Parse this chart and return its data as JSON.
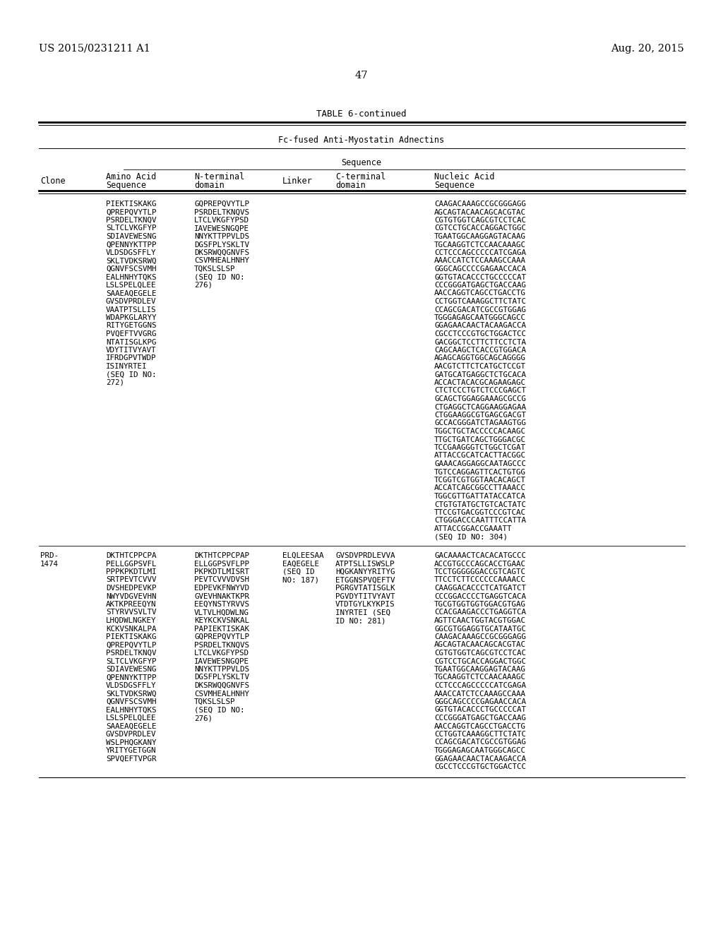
{
  "background_color": "#ffffff",
  "page_number": "47",
  "left_header": "US 2015/0231211 A1",
  "right_header": "Aug. 20, 2015",
  "table_title": "TABLE 6-continued",
  "table_subtitle": "Fc-fused Anti-Myostatin Adnectins",
  "row1": {
    "clone": "",
    "amino_acid": [
      "PIEKTISKAKG",
      "QPREPQVYTLP",
      "PSRDELTKNQV",
      "SLTCLVKGFYP",
      "SDIAVEWESNG",
      "QPENNYKTTPP",
      "VLDSDGSFFLY",
      "SKLTVDKSRWQ",
      "QGNVFSCSVMH",
      "EALHNHYTQKS",
      "LSLSPELQLEE",
      "SAAEAQEGELE",
      "GVSDVPRDLEV",
      "VAATPTSLLIS",
      "WDAPKGLARYY",
      "RITYGETGGNS",
      "PVQEFTVVGRG",
      "NTATISGLKPG",
      "VDYTITVYAVT",
      "IFRDGPVTWDP",
      "ISINYRTEI",
      "(SEQ ID NO:",
      "272)"
    ],
    "n_terminal": [
      "GQPREPQVYTLP",
      "PSRDELTKNQVS",
      "LTCLVKGFYPSD",
      "IAVEWESNGQPE",
      "NNYKTTPPVLDS",
      "DGSFPLYSKLTV",
      "DKSRWQQGNVFS",
      "CSVMHEALHNHY",
      "TQKSLSLSP",
      "(SEQ ID NO:",
      "276)"
    ],
    "linker": [],
    "c_terminal": [],
    "nucleic_acid": [
      "CAAGACAAAGCCGCGGGAGG",
      "AGCAGTACAACAGCACGTAC",
      "CGTGTGGTCAGCGTCCTCAC",
      "CGTCCTGCACCAGGACTGGC",
      "TGAATGGCAAGGAGTACAAG",
      "TGCAAGGTCTCCAACAAAGC",
      "CCTCCCAGCCCCCATCGAGA",
      "AAACCATCTCCAAAGCCAAA",
      "GGGCAGCCCCGAGAACCACA",
      "GGTGTACACCCTGCCCCCAT",
      "CCCGGGATGAGCTGACCAAG",
      "AACCAGGTCAGCCTGACCTG",
      "CCTGGTCAAAGGCTTCTATC",
      "CCAGCGACATCGCCGTGGAG",
      "TGGGAGAGCAATGGGCAGCC",
      "GGAGAACAACTACAAGACCA",
      "CGCCTCCCGTGCTGGACTCC",
      "GACGGCTCCTTCTTCCTCTA",
      "CAGCAAGCTCACCGTGGACA",
      "AGAGCAGGTGGCAGCAGGGG",
      "AACGTCTTCTCATGCTCCGT",
      "GATGCATGAGGCTCTGCACA",
      "ACCACTACACGCAGAAGAGC",
      "CTCTCCCTGTCTCCCGAGCT",
      "GCAGCTGGAGGAAAGCGCCG",
      "CTGAGGCTCAGGAAGGAGAA",
      "CTGGAAGGCGTGAGCGACGT",
      "GCCACGGGATCTAGAAGTGG",
      "TGGCTGCTACCCCCACAAGC",
      "TTGCTGATCAGCTGGGACGC",
      "TCCGAAGGGTCTGGCTCGAT",
      "ATTACCGCATCACTTACGGC",
      "GAAACAGGAGGCAATAGCCC",
      "TGTCCAGGAGTTCACTGTGG",
      "TCGGTCGTGGTAACACAGCT",
      "ACCATCAGCGGCCTTAAACC",
      "TGGCGTTGATTATACCATCA",
      "CTGTGTATGCTGTCACTATC",
      "TTCCGTGACGGTCCCGTCAC",
      "CTGGGACCCAATTTCCATTA",
      "ATTACCGGACCGAAATT",
      "(SEQ ID NO: 304)"
    ]
  },
  "row2": {
    "clone_line1": "PRD-",
    "clone_line2": "1474",
    "amino_acid": [
      "DKTHTCPPCPA",
      "PELLGGPSVFL",
      "PPPKPKDTLMI",
      "SRTPEVTCVVV",
      "DVSHEDPEVKP",
      "NWYVDGVEVHN",
      "AKTKPREEQYN",
      "STYRVVSVLTV",
      "LHQDWLNGKEY",
      "KCKVSNKALPA",
      "PIEKTISKAKG",
      "QPREPQVYTLP",
      "PSRDELTKNQV",
      "SLTCLVKGFYP",
      "SDIAVEWESNG",
      "QPENNYKTTPP",
      "VLDSDGSFFLY",
      "SKLTVDKSRWQ",
      "QGNVFSCSVMH",
      "EALHNHYTQKS",
      "LSLSPELQLEE",
      "SAAEAQEGELE",
      "GVSDVPRDLEV",
      "WSLPHQGKANY",
      "YRITYGETGGN",
      "SPVQEFTVPGR"
    ],
    "n_terminal": [
      "DKTHTCPPCPAP",
      "ELLGGPSVFLPP",
      "PKPKDTLMISRT",
      "PEVTCVVVDVSH",
      "EDPEVKFNWYVD",
      "GVEVHNAKTKPR",
      "EEQYNSTYRVVS",
      "VLTVLHQDWLNG",
      "KEYKCKVSNKAL",
      "PAPIEKTISKAK",
      "GQPREPQVYTLP",
      "PSRDELTKNQVS",
      "LTCLVKGFYPSD",
      "IAVEWESNGQPE",
      "NNYKTTPPVLDS",
      "DGSFPLYSKLTV",
      "DKSRWQQGNVFS",
      "CSVMHEALHNHY",
      "TQKSLSLSP",
      "(SEQ ID NO:",
      "276)"
    ],
    "linker": [
      "ELQLEESAA",
      "EAQEGELE",
      "(SEQ ID",
      "NO: 187)"
    ],
    "c_terminal": [
      "GVSDVPRDLEVVA",
      "ATPTSLLISWSLP",
      "HQGKANYYRITYG",
      "ETGGNSPVQEFTV",
      "PGRGVTATISGLK",
      "PGVDYTITVYAVT",
      "VTDTGYLKYKPIS",
      "INYRTEI (SEQ",
      "ID NO: 281)"
    ],
    "nucleic_acid": [
      "GACAAAACTCACACATGCCC",
      "ACCGTGCCCAGCACCTGAAC",
      "TCCTGGGGGGACCGTCAGTC",
      "TTCCTCTTCCCCCCAAAACC",
      "CAAGGACACCCTCATGATCT",
      "CCCGGACCCCTGAGGTCACA",
      "TGCGTGGTGGTGGACGTGAG",
      "CCACGAAGACCCTGAGGTCA",
      "AGTTCAACTGGTACGTGGAC",
      "GGCGTGGAGGTGCATAATGC",
      "CAAGACAAAGCCGCGGGAGG",
      "AGCAGTACAACAGCACGTAC",
      "CGTGTGGTCAGCGTCCTCAC",
      "CGTCCTGCACCAGGACTGGC",
      "TGAATGGCAAGGAGTACAAG",
      "TGCAAGGTCTCCAACAAAGC",
      "CCTCCCAGCCCCCATCGAGA",
      "AAACCATCTCCAAAGCCAAA",
      "GGGCAGCCCCGAGAACCACA",
      "GGTGTACACCCTGCCCCCAT",
      "CCCGGGATGAGCTGACCAAG",
      "AACCAGGTCAGCCTGACCTG",
      "CCTGGTCAAAGGCTTCTATC",
      "CCAGCGACATCGCCGTGGAG",
      "TGGGAGAGCAATGGGCAGCC",
      "GGAGAACAACTACAAGACCA",
      "CGCCTCCCGTGCTGGACTCC"
    ]
  }
}
